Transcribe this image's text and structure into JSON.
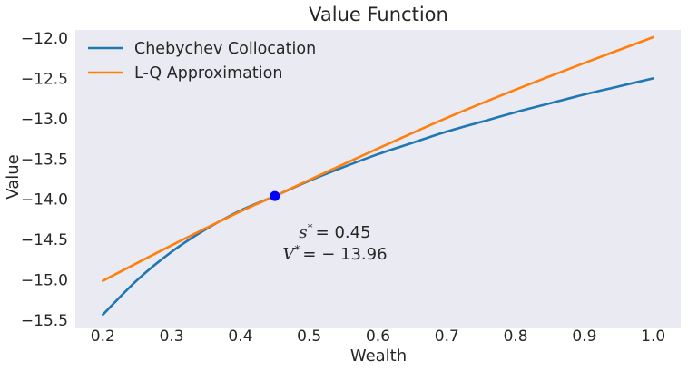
{
  "chart_data": {
    "type": "line",
    "title": "Value Function",
    "xlabel": "Wealth",
    "ylabel": "Value",
    "xlim": [
      0.16,
      1.04
    ],
    "ylim": [
      -15.6,
      -11.9
    ],
    "xticks": [
      0.2,
      0.3,
      0.4,
      0.5,
      0.6,
      0.7,
      0.8,
      0.9,
      1.0
    ],
    "xtick_labels": [
      "0.2",
      "0.3",
      "0.4",
      "0.5",
      "0.6",
      "0.7",
      "0.8",
      "0.9",
      "1.0"
    ],
    "yticks": [
      -15.5,
      -15.0,
      -14.5,
      -14.0,
      -13.5,
      -13.0,
      -12.5,
      -12.0
    ],
    "ytick_labels": [
      "−15.5",
      "−15.0",
      "−14.5",
      "−14.0",
      "−13.5",
      "−13.0",
      "−12.5",
      "−12.0"
    ],
    "grid": false,
    "background": "#eaeaf2",
    "legend_position": "top-left",
    "series": [
      {
        "name": "Chebychev Collocation",
        "color": "#1f77b4",
        "x": [
          0.2,
          0.25,
          0.3,
          0.35,
          0.4,
          0.45,
          0.5,
          0.55,
          0.6,
          0.65,
          0.7,
          0.75,
          0.8,
          0.85,
          0.9,
          0.95,
          1.0
        ],
        "y": [
          -15.43,
          -15.0,
          -14.65,
          -14.37,
          -14.14,
          -13.96,
          -13.77,
          -13.6,
          -13.44,
          -13.3,
          -13.16,
          -13.04,
          -12.92,
          -12.81,
          -12.7,
          -12.6,
          -12.5
        ]
      },
      {
        "name": "L-Q Approximation",
        "color": "#ff7f0e",
        "x": [
          0.2,
          0.3,
          0.4,
          0.45,
          0.5,
          0.6,
          0.7,
          0.8,
          0.9,
          1.0
        ],
        "y": [
          -15.01,
          -14.57,
          -14.15,
          -13.96,
          -13.76,
          -13.37,
          -12.99,
          -12.64,
          -12.31,
          -11.99
        ]
      }
    ],
    "marker": {
      "x": 0.45,
      "y": -13.96,
      "color": "#0000ff"
    },
    "annotation": {
      "x": 0.45,
      "s_label": "s",
      "s_value": "= 0.45",
      "v_label": "V",
      "v_value": "= − 13.96",
      "star": "*"
    }
  }
}
